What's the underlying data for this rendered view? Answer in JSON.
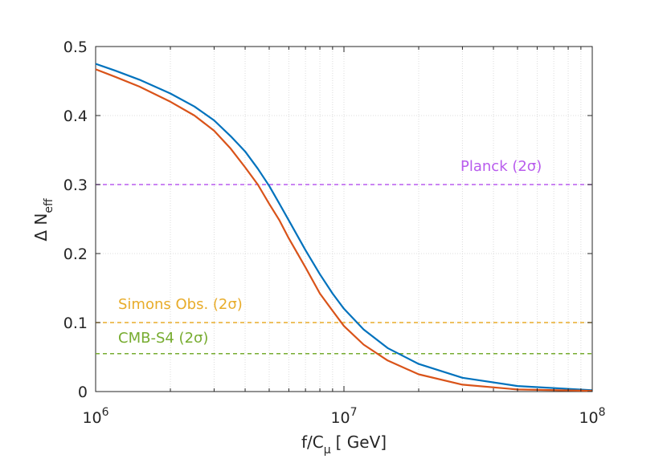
{
  "chart_data": {
    "type": "line",
    "x_scale": "log",
    "xlim": [
      1000000,
      100000000
    ],
    "ylim": [
      0,
      0.5
    ],
    "grid": true,
    "xlabel": {
      "base": "f/C",
      "sub": "μ",
      "unit": "[ GeV]"
    },
    "ylabel": {
      "base": "Δ N",
      "sub": "eff"
    },
    "x_ticks": [
      {
        "base": "10",
        "exp": "6",
        "value": 1000000
      },
      {
        "base": "10",
        "exp": "7",
        "value": 10000000
      },
      {
        "base": "10",
        "exp": "8",
        "value": 100000000
      }
    ],
    "y_ticks": [
      "0",
      "0.1",
      "0.2",
      "0.3",
      "0.4",
      "0.5"
    ],
    "y_tick_values": [
      0,
      0.1,
      0.2,
      0.3,
      0.4,
      0.5
    ],
    "series": [
      {
        "name": "blue curve",
        "color": "#0072bd",
        "x": [
          1000000,
          1200000,
          1500000,
          2000000,
          2500000,
          3000000,
          3500000,
          4000000,
          4500000,
          5000000,
          5500000,
          6000000,
          7000000,
          8000000,
          9000000,
          10000000,
          12000000,
          15000000,
          20000000,
          30000000,
          50000000,
          100000000
        ],
        "y": [
          0.475,
          0.465,
          0.452,
          0.432,
          0.413,
          0.393,
          0.37,
          0.348,
          0.323,
          0.298,
          0.272,
          0.248,
          0.205,
          0.17,
          0.142,
          0.12,
          0.09,
          0.063,
          0.04,
          0.02,
          0.008,
          0.002
        ]
      },
      {
        "name": "orange curve",
        "color": "#d95319",
        "x": [
          1000000,
          1200000,
          1500000,
          2000000,
          2500000,
          3000000,
          3500000,
          4000000,
          4500000,
          5000000,
          5500000,
          6000000,
          7000000,
          8000000,
          9000000,
          10000000,
          12000000,
          15000000,
          20000000,
          30000000,
          50000000,
          100000000
        ],
        "y": [
          0.467,
          0.456,
          0.442,
          0.42,
          0.4,
          0.378,
          0.352,
          0.325,
          0.3,
          0.272,
          0.248,
          0.222,
          0.18,
          0.142,
          0.117,
          0.095,
          0.068,
          0.045,
          0.025,
          0.01,
          0.003,
          0.001
        ]
      }
    ],
    "reference_lines": [
      {
        "label": "Planck (2σ)",
        "y": 0.3,
        "color": "#b85bed"
      },
      {
        "label": "Simons Obs. (2σ)",
        "y": 0.1,
        "color": "#e8ac2a"
      },
      {
        "label": "CMB-S4 (2σ)",
        "y": 0.055,
        "color": "#77ac30"
      }
    ]
  }
}
